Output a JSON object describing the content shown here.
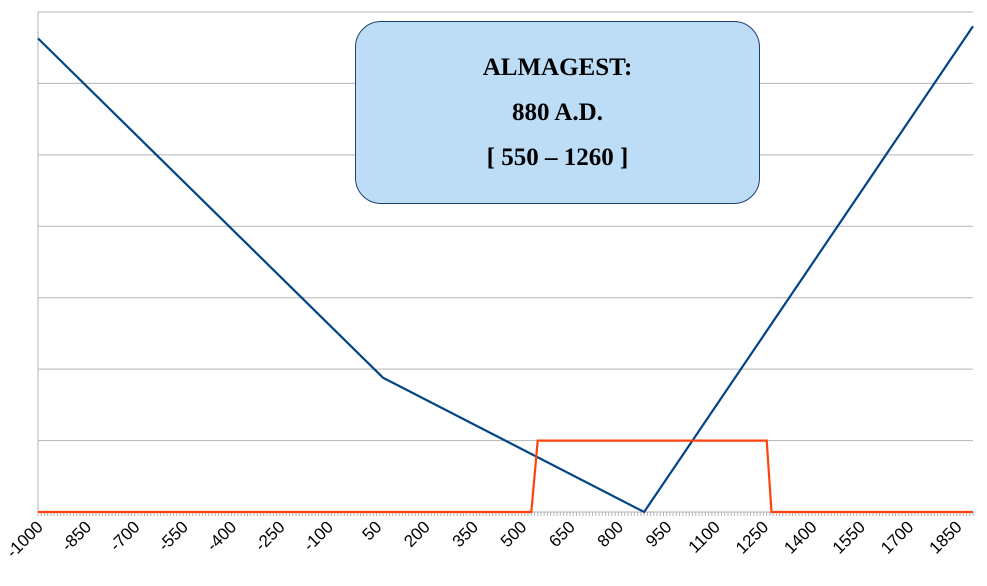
{
  "info_box": {
    "line1": "ALMAGEST:",
    "line2": "880 A.D.",
    "line3": "[ 550 – 1260 ]"
  },
  "colors": {
    "background": "#ffffff",
    "gridline": "#b3b3b3",
    "axis": "#b3b3b3",
    "deviation_line": "#004586",
    "interval_line": "#ff420e",
    "box_fill": "#bdddf7",
    "box_border": "#1f3f73"
  },
  "chart_data": {
    "type": "line",
    "title": "",
    "xlabel": "",
    "ylabel": "",
    "xlim": [
      -1000,
      1900
    ],
    "ylim": [
      0,
      7
    ],
    "grid": true,
    "legend": "none",
    "x_tick_labels": [
      "-1000",
      "-850",
      "-700",
      "-550",
      "-400",
      "-250",
      "-100",
      "50",
      "200",
      "350",
      "500",
      "650",
      "800",
      "950",
      "1100",
      "1250",
      "1400",
      "1550",
      "1700",
      "1850"
    ],
    "y_gridlines": [
      0,
      1,
      2,
      3,
      4,
      5,
      6,
      7
    ],
    "series": [
      {
        "points": [
          [
            -1000,
            6.63
          ],
          [
            70,
            1.88
          ],
          [
            880,
            0
          ],
          [
            1900,
            6.8
          ]
        ],
        "color": "#004586"
      },
      {
        "points": [
          [
            -1000,
            0
          ],
          [
            530,
            0
          ],
          [
            550,
            1
          ],
          [
            1260,
            1
          ],
          [
            1275,
            0
          ],
          [
            1900,
            0
          ]
        ],
        "color": "#ff420e"
      }
    ]
  }
}
